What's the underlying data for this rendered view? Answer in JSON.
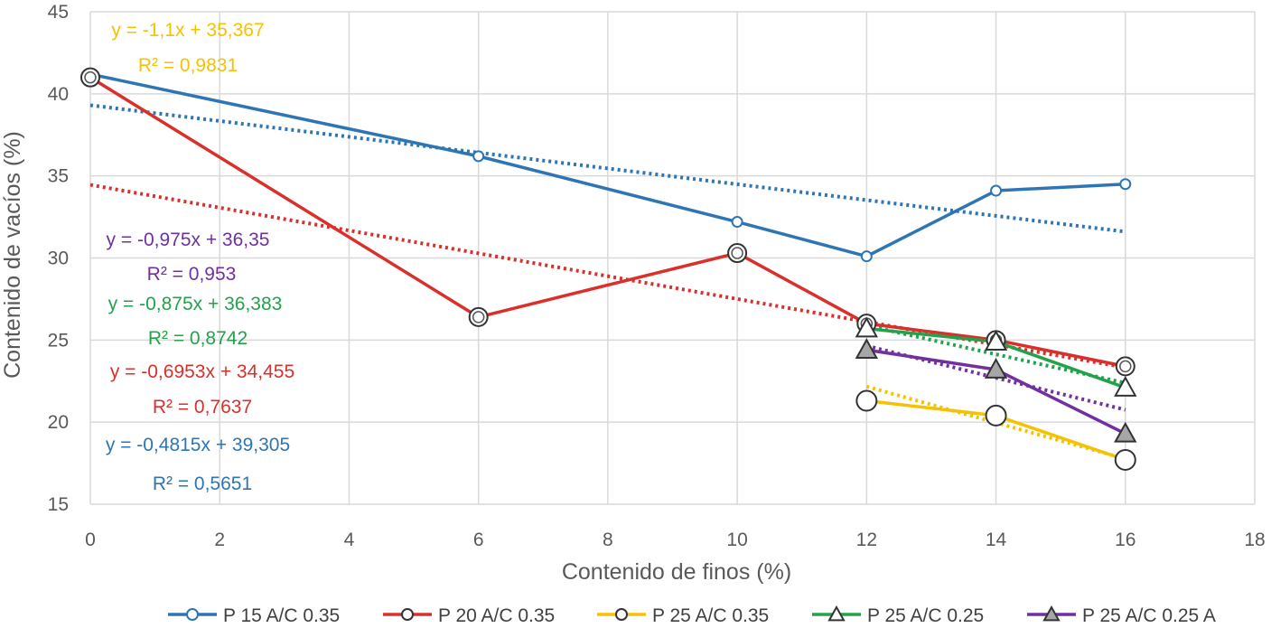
{
  "chart_data": {
    "type": "line",
    "xlabel": "Contenido de finos (%)",
    "ylabel": "Contenido de vacíos (%)",
    "xlim": [
      0,
      18
    ],
    "ylim": [
      15,
      45
    ],
    "xticks": [
      0,
      2,
      4,
      6,
      8,
      10,
      12,
      14,
      16,
      18
    ],
    "yticks": [
      15,
      20,
      25,
      30,
      35,
      40,
      45
    ],
    "grid": true,
    "legend_position": "bottom",
    "series": [
      {
        "name": "P 15 A/C 0.35",
        "color": "#2e75b6",
        "marker": "circle-small",
        "x": [
          0,
          6,
          10,
          12,
          14,
          16
        ],
        "y": [
          41.2,
          36.2,
          32.2,
          30.1,
          34.1,
          34.5
        ],
        "trendline": {
          "slope": -0.4815,
          "intercept": 39.305,
          "x_range": [
            0,
            16
          ]
        },
        "equation": "y = -0,4815x + 39,305",
        "r2": "R² = 0,5651"
      },
      {
        "name": "P 20 A/C 0.35",
        "color": "#d9302c",
        "marker": "circle",
        "x": [
          0,
          6,
          10,
          12,
          14,
          16
        ],
        "y": [
          41.0,
          26.4,
          30.3,
          26.0,
          25.0,
          23.4
        ],
        "trendline": {
          "slope": -0.6953,
          "intercept": 34.455,
          "x_range": [
            0,
            16
          ]
        },
        "equation": "y = -0,6953x + 34,455",
        "r2": "R² = 0,7637"
      },
      {
        "name": "P 25 A/C 0.35",
        "color": "#f5c200",
        "marker": "circle-large",
        "x": [
          12,
          14,
          16
        ],
        "y": [
          21.3,
          20.4,
          17.7
        ],
        "trendline": {
          "slope": -1.1,
          "intercept": 35.367,
          "x_range": [
            12,
            16
          ]
        },
        "equation": "y = -1,1x + 35,367",
        "r2": "R² = 0,9831"
      },
      {
        "name": "P 25 A/C 0.25",
        "color": "#22a24a",
        "marker": "triangle",
        "x": [
          12,
          14,
          16
        ],
        "y": [
          25.7,
          24.9,
          22.1
        ],
        "trendline": {
          "slope": -0.875,
          "intercept": 36.383,
          "x_range": [
            12,
            16
          ]
        },
        "equation": "y = -0,875x + 36,383",
        "r2": "R² = 0,8742"
      },
      {
        "name": "P 25 A/C 0.25 A",
        "color": "#7030a0",
        "marker": "triangle-filled",
        "x": [
          12,
          14,
          16
        ],
        "y": [
          24.4,
          23.2,
          19.3
        ],
        "trendline": {
          "slope": -0.975,
          "intercept": 36.35,
          "x_range": [
            12,
            16
          ]
        },
        "equation": "y = -0,975x + 36,35",
        "r2": "R² = 0,953"
      }
    ]
  }
}
